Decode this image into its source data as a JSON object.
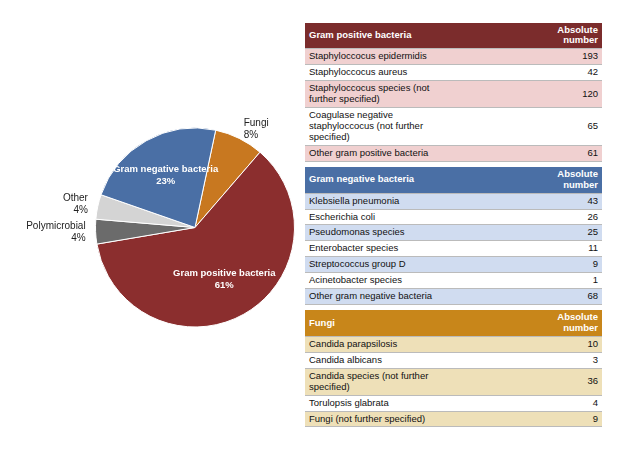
{
  "chart_data": [
    {
      "type": "pie",
      "categories": [
        "Fungi",
        "Gram positive bacteria",
        "Polymicrobial",
        "Other",
        "Gram negative bacteria"
      ],
      "values": [
        8,
        61,
        4,
        4,
        23
      ],
      "value_labels": [
        "8%",
        "61%",
        "4%",
        "4%",
        "23%"
      ],
      "data_labels": true,
      "colors": [
        "#C87820",
        "#8B2E2E",
        "#6B6B6B",
        "#D4D4D4",
        "#4A6FA5"
      ],
      "legend": false
    },
    {
      "type": "table",
      "sections": [
        {
          "title": "Gram positive bacteria",
          "column_title": "Absolute\nnumber",
          "colors": [
            "#7B2C2C",
            "#F0D0D0"
          ],
          "categories": [
            "Staphyloccocus epidermidis",
            "Staphyloccocus aureus",
            "Staphyloccocus species (not\nfurther specified)",
            "Coagulase negative\nstaphyloccocus (not further\nspecified)",
            "Other gram positive bacteria"
          ],
          "values": [
            193,
            42,
            120,
            65,
            61
          ]
        },
        {
          "title": "Gram negative bacteria",
          "column_title": "Absolute\nnumber",
          "colors": [
            "#4A6FA5",
            "#D0DCF0"
          ],
          "categories": [
            "Klebsiella pneumonia",
            "Escherichia coli",
            "Pseudomonas species",
            "Enterobacter species",
            "Streptococcus group D",
            "Acinetobacter species",
            "Other gram negative bacteria"
          ],
          "values": [
            43,
            26,
            25,
            11,
            9,
            1,
            68
          ]
        },
        {
          "title": "Fungi",
          "column_title": "Absolute\nnumber",
          "colors": [
            "#C8861A",
            "#EEE0B8"
          ],
          "categories": [
            "Candida parapsilosis",
            "Candida albicans",
            "Candida species (not further\nspecified)",
            "Torulopsis glabrata",
            "Fungi (not further specified)"
          ],
          "values": [
            10,
            3,
            36,
            4,
            9
          ]
        }
      ]
    }
  ]
}
